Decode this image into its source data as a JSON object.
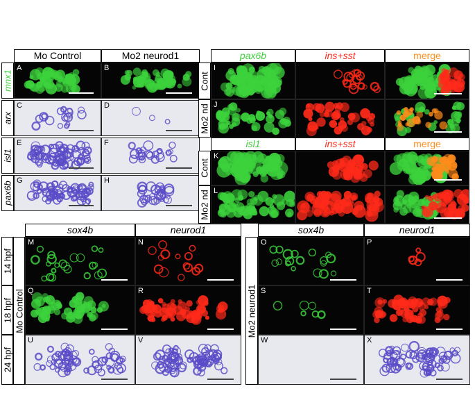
{
  "colors": {
    "green": "#3cd23c",
    "red": "#ff2a1a",
    "orange": "#ff8c1a",
    "blue": "#5a4bc8",
    "dark_bg": "#050505",
    "light_bg": "#e8e9ee"
  },
  "left_top": {
    "col_headers": [
      "Mo Control",
      "Mo2 neurod1"
    ],
    "row_labels": [
      "mnx1",
      "arx",
      "isl1",
      "pax6b"
    ],
    "panels": [
      "A",
      "B",
      "C",
      "D",
      "E",
      "F",
      "G",
      "H"
    ]
  },
  "right_top": {
    "headers_1": [
      "pax6b",
      "ins+sst",
      "merge"
    ],
    "headers_2": [
      "isl1",
      "ins+sst",
      "merge"
    ],
    "row_labels": [
      "Cont",
      "Mo2 nd",
      "Cont",
      "Mo2 nd"
    ],
    "panels": [
      "I",
      "J",
      "K",
      "L"
    ]
  },
  "bottom": {
    "left_headers": [
      "sox4b",
      "neurod1"
    ],
    "right_headers": [
      "sox4b",
      "neurod1"
    ],
    "time_labels": [
      "14 hpf",
      "18 hpf",
      "24 hpf"
    ],
    "group_left": "Mo Control",
    "group_right": "Mo2 neurod1",
    "panels": [
      "M",
      "N",
      "O",
      "P",
      "Q",
      "R",
      "S",
      "T",
      "U",
      "V",
      "W",
      "X"
    ]
  }
}
